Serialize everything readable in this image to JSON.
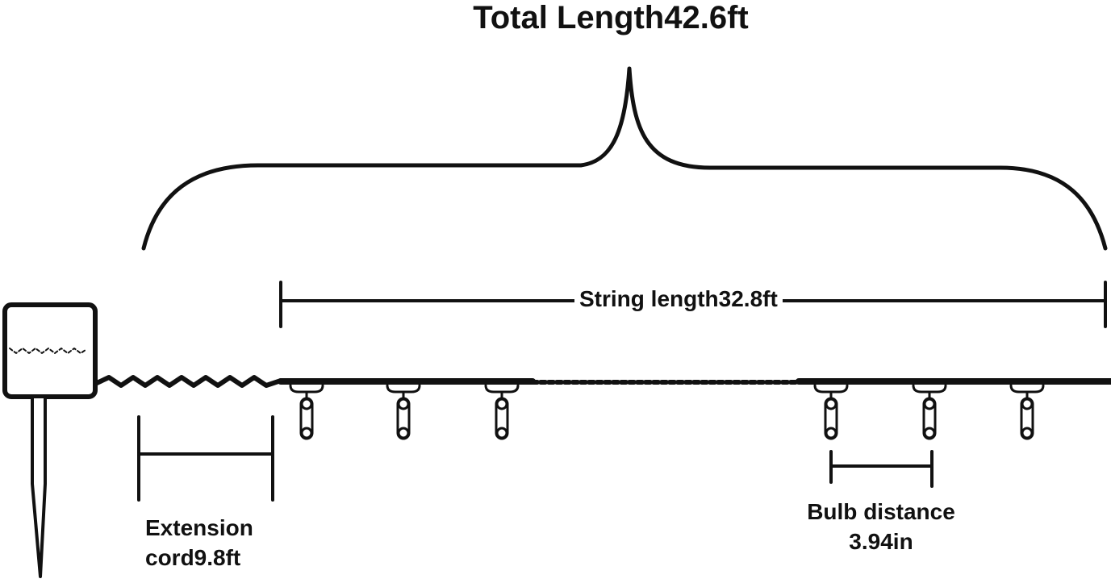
{
  "title": "Total Length42.6ft",
  "labels": {
    "string_length": "String length32.8ft",
    "extension_line1": "Extension",
    "extension_line2": "cord9.8ft",
    "bulb_line1": "Bulb distance",
    "bulb_line2": "3.94in"
  },
  "icons": [
    "solar-panel-icon",
    "ground-stake-icon",
    "bulb-icon"
  ],
  "colors": {
    "ink": "#111111",
    "background": "#ffffff"
  }
}
